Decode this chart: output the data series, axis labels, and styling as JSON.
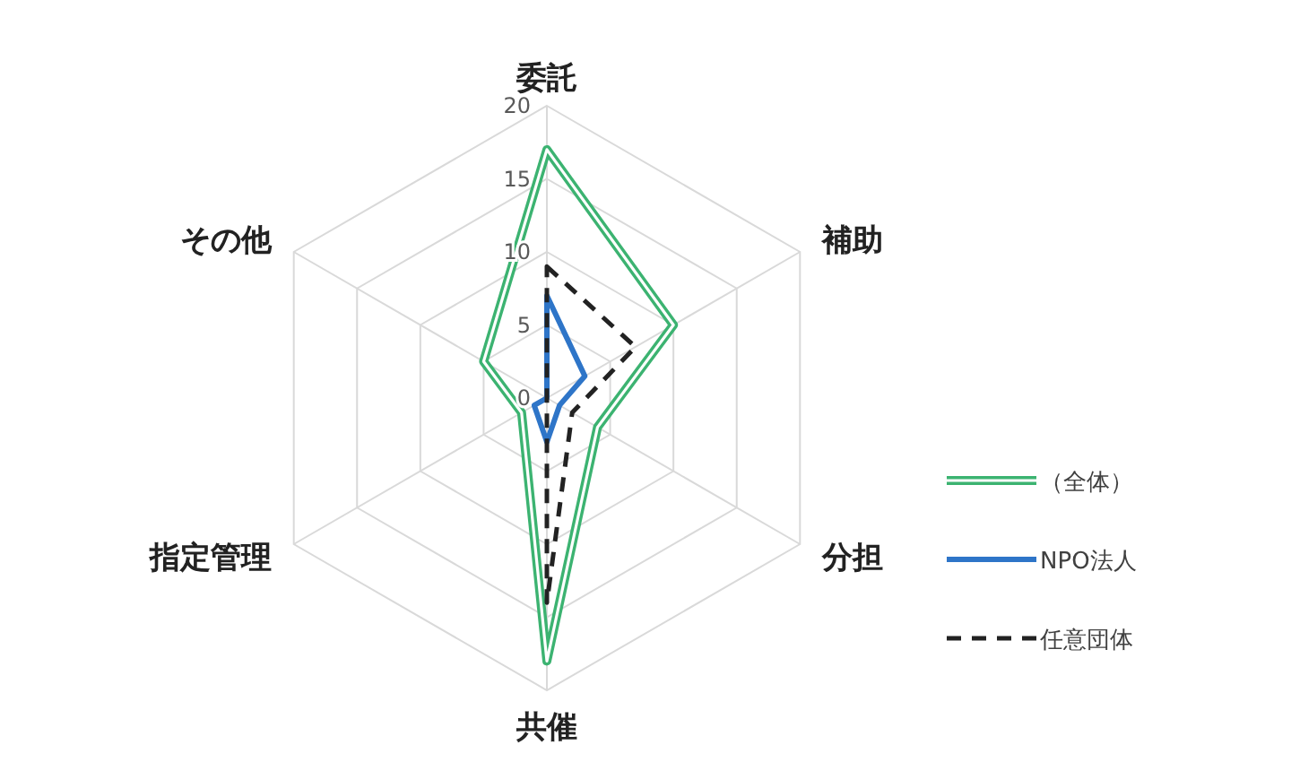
{
  "chart_data": {
    "type": "radar",
    "categories": [
      "委託",
      "補助",
      "分担",
      "共催",
      "指定管理",
      "その他"
    ],
    "ylim": [
      0,
      20
    ],
    "yticks": [
      0,
      5,
      10,
      15,
      20
    ],
    "grid": true,
    "legend": "right",
    "series": [
      {
        "name": "（全体）",
        "color": "#3cb371",
        "line_style": "double",
        "values": [
          17,
          10,
          4,
          18,
          2,
          5
        ]
      },
      {
        "name": "NPO法人",
        "color": "#2e75c8",
        "line_style": "solid",
        "values": [
          7,
          3,
          1,
          3,
          1,
          0
        ]
      },
      {
        "name": "任意団体",
        "color": "#222222",
        "line_style": "dashed",
        "values": [
          9,
          7,
          2,
          14,
          0,
          0
        ]
      }
    ]
  }
}
